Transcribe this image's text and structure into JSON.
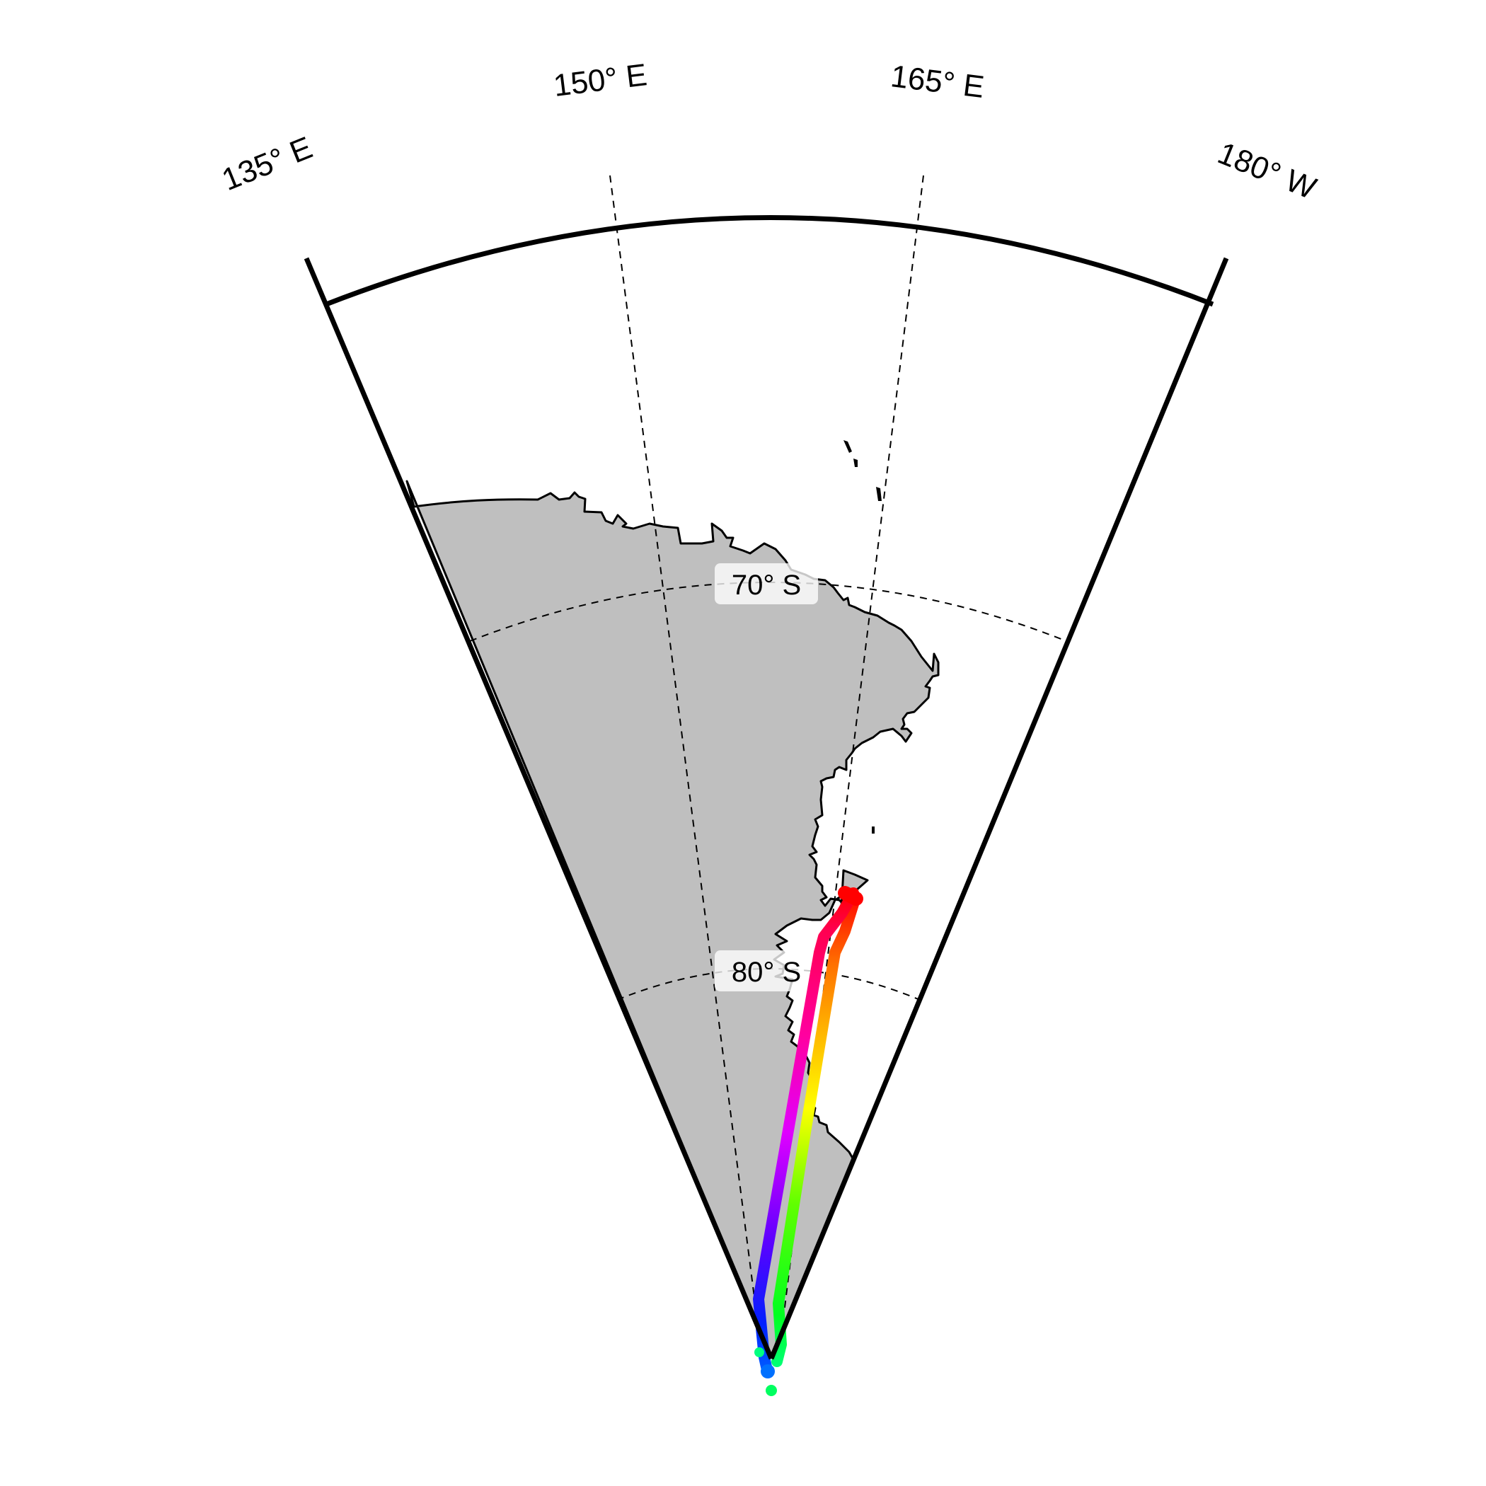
{
  "map": {
    "projection": "polar stereographic sector",
    "longitude_range": [
      "135° E",
      "180° W"
    ],
    "meridian_labels": [
      "135° E",
      "150° E",
      "165° E",
      "180° W"
    ],
    "parallel_labels": [
      "70° S",
      "80° S"
    ],
    "land_color": "#bfbfbf",
    "coastline_color": "#000000",
    "graticule_style": "dashed"
  },
  "track": {
    "colormap": "hue (red → magenta → blue → cyan → green → yellow → orange → red)",
    "stops": [
      "#ff0000",
      "#ff0080",
      "#ff00ff",
      "#8000ff",
      "#0000ff",
      "#0080ff",
      "#00ff80",
      "#00ff00",
      "#80ff00",
      "#ffff00",
      "#ff8000",
      "#ff0000"
    ]
  }
}
